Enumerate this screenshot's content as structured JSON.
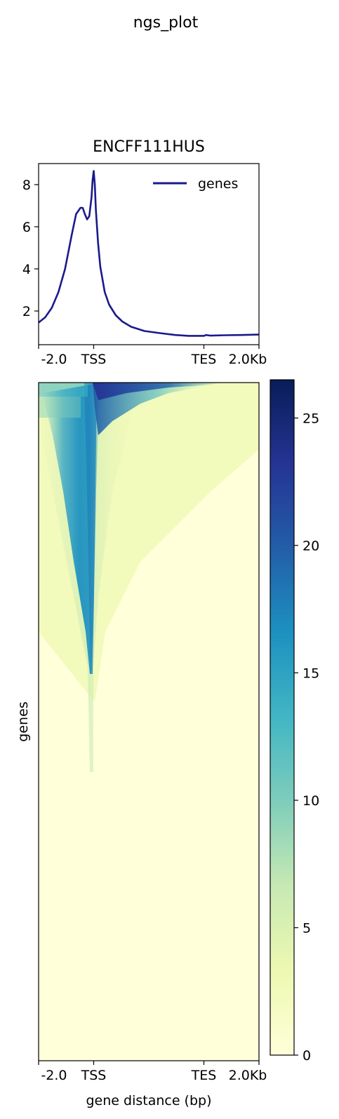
{
  "suptitle": "ngs_plot",
  "profile": {
    "title": "ENCFF111HUS",
    "ylim": [
      0.4,
      9.0
    ],
    "yticks": [
      2,
      4,
      6,
      8
    ],
    "xlim": [
      0,
      1000
    ],
    "xticks": [
      {
        "pos": 0,
        "label": "-2.0"
      },
      {
        "pos": 250,
        "label": "TSS"
      },
      {
        "pos": 750,
        "label": "TES"
      },
      {
        "pos": 1000,
        "label": "2.0Kb"
      }
    ],
    "legend": "genes",
    "legend_loc": "upper right",
    "line_color": "#1a1a8c",
    "series": {
      "name": "genes",
      "x": [
        0,
        30,
        60,
        90,
        120,
        150,
        170,
        190,
        200,
        210,
        220,
        230,
        240,
        245,
        250,
        255,
        260,
        270,
        280,
        300,
        320,
        350,
        380,
        420,
        480,
        550,
        620,
        680,
        720,
        750,
        760,
        780,
        850,
        920,
        1000
      ],
      "y": [
        1.45,
        1.7,
        2.15,
        2.9,
        4.0,
        5.6,
        6.6,
        6.9,
        6.9,
        6.6,
        6.35,
        6.5,
        7.4,
        8.2,
        8.65,
        8.0,
        6.8,
        5.2,
        4.1,
        2.9,
        2.3,
        1.8,
        1.5,
        1.25,
        1.05,
        0.95,
        0.86,
        0.82,
        0.82,
        0.82,
        0.86,
        0.83,
        0.85,
        0.86,
        0.88
      ]
    }
  },
  "heatmap": {
    "ylabel": "genes",
    "xlabel": "gene distance (bp)",
    "xlim": [
      0,
      1000
    ],
    "xticks": [
      {
        "pos": 0,
        "label": "-2.0"
      },
      {
        "pos": 250,
        "label": "TSS"
      },
      {
        "pos": 750,
        "label": "TES"
      },
      {
        "pos": 1000,
        "label": "2.0Kb"
      }
    ],
    "colormap": "YlGnBu",
    "colormap_stops": [
      "#ffffd9",
      "#edf8b1",
      "#c7e9b4",
      "#7fcdbb",
      "#41b6c4",
      "#1d91c0",
      "#225ea8",
      "#253494",
      "#081d58"
    ],
    "colorbar": {
      "vmin": 0,
      "vmax": 26.5,
      "ticks": [
        0,
        5,
        10,
        15,
        20,
        25
      ]
    }
  },
  "chart_data": [
    {
      "type": "line",
      "title": "ENCFF111HUS",
      "xlabel": "",
      "ylabel": "",
      "x": [
        0,
        30,
        60,
        90,
        120,
        150,
        170,
        190,
        200,
        210,
        220,
        230,
        240,
        245,
        250,
        255,
        260,
        270,
        280,
        300,
        320,
        350,
        380,
        420,
        480,
        550,
        620,
        680,
        720,
        750,
        760,
        780,
        850,
        920,
        1000
      ],
      "series": [
        {
          "name": "genes",
          "values": [
            1.45,
            1.7,
            2.15,
            2.9,
            4.0,
            5.6,
            6.6,
            6.9,
            6.9,
            6.6,
            6.35,
            6.5,
            7.4,
            8.2,
            8.65,
            8.0,
            6.8,
            5.2,
            4.1,
            2.9,
            2.3,
            1.8,
            1.5,
            1.25,
            1.05,
            0.95,
            0.86,
            0.82,
            0.82,
            0.82,
            0.86,
            0.83,
            0.85,
            0.86,
            0.88
          ]
        }
      ],
      "xticklabels": [
        "-2.0",
        "TSS",
        "TES",
        "2.0Kb"
      ],
      "yticks": [
        2,
        4,
        6,
        8
      ],
      "ylim": [
        0.4,
        9.0
      ],
      "legend": "upper right",
      "grid": false
    },
    {
      "type": "heatmap",
      "xlabel": "gene distance (bp)",
      "ylabel": "genes",
      "xticklabels": [
        "-2.0",
        "TSS",
        "TES",
        "2.0Kb"
      ],
      "colorbar_range": [
        0,
        26.5
      ],
      "colorbar_ticks": [
        0,
        5,
        10,
        15,
        20,
        25
      ],
      "colormap": "YlGnBu"
    }
  ]
}
